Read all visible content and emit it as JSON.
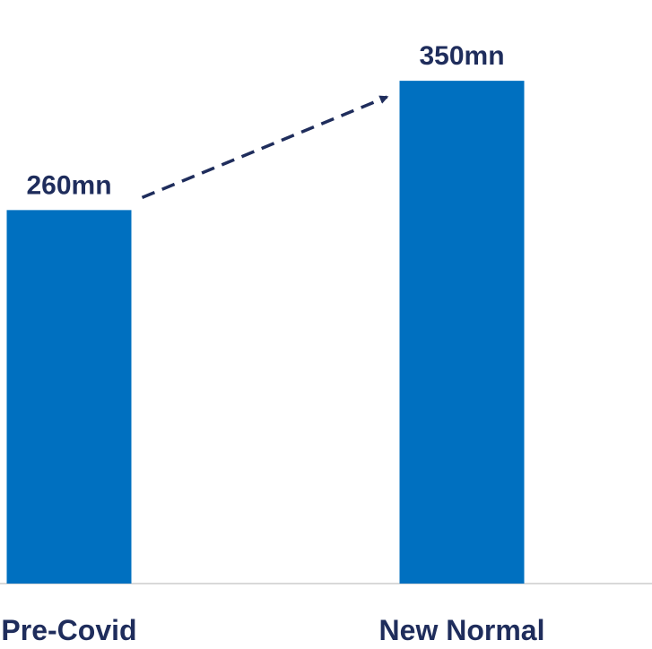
{
  "chart_data": {
    "type": "bar",
    "categories": [
      "Pre-Covid",
      "New Normal"
    ],
    "values": [
      260,
      350
    ],
    "data_labels": [
      "260mn",
      "350mn"
    ],
    "unit": "mn",
    "ylim": [
      0,
      400
    ],
    "grid": false,
    "legend": "none",
    "trend_arrow": {
      "from": "Pre-Covid",
      "to": "New Normal",
      "style": "dashed"
    }
  },
  "colors": {
    "bar": "#0070C0",
    "label_text": "#1F2D5C",
    "arrow": "#1F2D5C",
    "baseline": "#D9D9D9"
  }
}
